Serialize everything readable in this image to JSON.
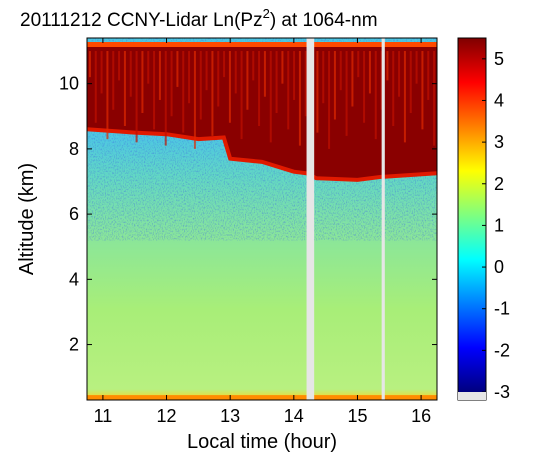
{
  "chart_data": {
    "type": "heatmap",
    "title": {
      "prefix": "20111212 CCNY-Lidar Ln(Pz",
      "superscript": "2",
      "suffix": ") at 1064-nm"
    },
    "xlabel": "Local time (hour)",
    "ylabel": "Altitude (km)",
    "xlim": [
      10.75,
      16.25
    ],
    "ylim": [
      0.3,
      11.4
    ],
    "x_ticks": [
      11,
      12,
      13,
      14,
      15,
      16
    ],
    "y_ticks": [
      2,
      4,
      6,
      8,
      10
    ],
    "colorbar": {
      "range": [
        -3,
        5.5
      ],
      "ticks": [
        5,
        4,
        3,
        2,
        1,
        0,
        -1,
        -2,
        -3
      ],
      "colors": [
        "#00007f",
        "#0000ff",
        "#007fff",
        "#00ffff",
        "#7fff7f",
        "#ffff00",
        "#ff7f00",
        "#ff0000",
        "#7f0000"
      ]
    },
    "data_gaps_hour": [
      [
        14.2,
        14.32
      ],
      [
        15.38,
        15.43
      ]
    ],
    "cloud_base_km": [
      {
        "x": 10.75,
        "y": 8.6
      },
      {
        "x": 11.5,
        "y": 8.5
      },
      {
        "x": 12.0,
        "y": 8.45
      },
      {
        "x": 12.5,
        "y": 8.3
      },
      {
        "x": 12.9,
        "y": 8.35
      },
      {
        "x": 13.0,
        "y": 7.7
      },
      {
        "x": 13.5,
        "y": 7.6
      },
      {
        "x": 14.0,
        "y": 7.3
      },
      {
        "x": 14.2,
        "y": 7.25
      },
      {
        "x": 14.35,
        "y": 7.1
      },
      {
        "x": 15.0,
        "y": 7.05
      },
      {
        "x": 15.4,
        "y": 7.15
      },
      {
        "x": 15.45,
        "y": 7.15
      },
      {
        "x": 16.25,
        "y": 7.25
      }
    ],
    "cloud_top_km": 11.2,
    "surface_layer_km": 0.45
  }
}
